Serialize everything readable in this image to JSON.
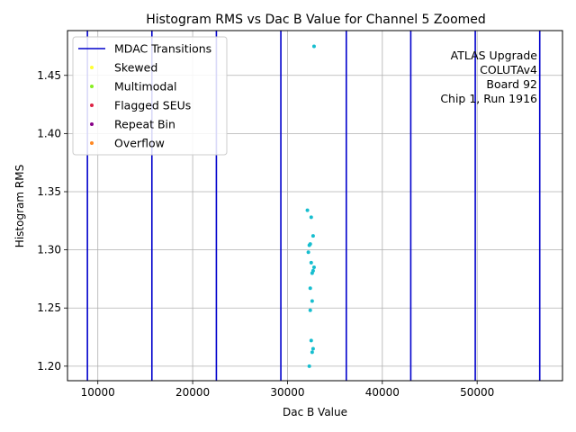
{
  "chart_data": {
    "type": "scatter",
    "title": "Histogram RMS vs Dac B Value for Channel 5 Zoomed",
    "xlabel": "Dac B Value",
    "ylabel": "Histogram RMS",
    "xlim": [
      6800,
      59000
    ],
    "ylim": [
      1.1875,
      1.4885
    ],
    "x_ticks": [
      10000,
      20000,
      30000,
      40000,
      50000
    ],
    "y_ticks": [
      1.2,
      1.25,
      1.3,
      1.35,
      1.4,
      1.45
    ],
    "y_tick_labels": [
      "1.20",
      "1.25",
      "1.30",
      "1.35",
      "1.40",
      "1.45"
    ],
    "grid": true,
    "legend_position": "top-left",
    "transitions": {
      "name": "MDAC Transitions",
      "color": "#0000cc",
      "x": [
        8900,
        15700,
        22500,
        29300,
        36200,
        43000,
        49800,
        56600
      ]
    },
    "legend": [
      {
        "name": "MDAC Transitions",
        "kind": "line",
        "color": "#0000cc"
      },
      {
        "name": "Skewed",
        "kind": "dot",
        "color": "#ffff33"
      },
      {
        "name": "Multimodal",
        "kind": "dot",
        "color": "#88ee22"
      },
      {
        "name": "Flagged SEUs",
        "kind": "dot",
        "color": "#dd2244"
      },
      {
        "name": "Repeat Bin",
        "kind": "dot",
        "color": "#880088"
      },
      {
        "name": "Overflow",
        "kind": "dot",
        "color": "#ff8822"
      }
    ],
    "points_color": "#17becf",
    "points": [
      {
        "x": 32800,
        "y": 1.475
      },
      {
        "x": 32100,
        "y": 1.334
      },
      {
        "x": 32500,
        "y": 1.328
      },
      {
        "x": 32700,
        "y": 1.312
      },
      {
        "x": 32400,
        "y": 1.305
      },
      {
        "x": 32300,
        "y": 1.304
      },
      {
        "x": 32200,
        "y": 1.298
      },
      {
        "x": 32500,
        "y": 1.289
      },
      {
        "x": 32800,
        "y": 1.285
      },
      {
        "x": 32700,
        "y": 1.282
      },
      {
        "x": 32600,
        "y": 1.28
      },
      {
        "x": 32400,
        "y": 1.267
      },
      {
        "x": 32600,
        "y": 1.256
      },
      {
        "x": 32400,
        "y": 1.248
      },
      {
        "x": 32500,
        "y": 1.222
      },
      {
        "x": 32700,
        "y": 1.215
      },
      {
        "x": 32600,
        "y": 1.212
      },
      {
        "x": 32300,
        "y": 1.2
      }
    ],
    "annotation": [
      "ATLAS Upgrade",
      "COLUTAv4",
      "Board 92",
      "Chip 1, Run 1916"
    ]
  }
}
